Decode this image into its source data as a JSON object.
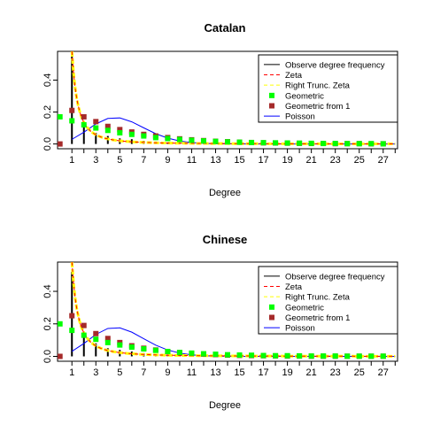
{
  "chart_data": [
    {
      "type": "line",
      "title": "Catalan",
      "xlabel": "Degree",
      "ylabel": "",
      "xlim": [
        -0.2,
        28.2
      ],
      "ylim": [
        -0.03,
        0.58
      ],
      "x_ticks": [
        1,
        2,
        3,
        4,
        5,
        6,
        7,
        8,
        9,
        10,
        11,
        12,
        13,
        14,
        15,
        16,
        17,
        18,
        19,
        20,
        21,
        22,
        23,
        24,
        25,
        26,
        27,
        28
      ],
      "x_tick_labels": [
        "1",
        "3",
        "5",
        "7",
        "9",
        "11",
        "13",
        "15",
        "17",
        "19",
        "21",
        "23",
        "25",
        "27"
      ],
      "y_ticks": [
        0.0,
        0.2,
        0.4
      ],
      "y_tick_labels": [
        "0.0",
        "0.2",
        "0.4"
      ],
      "legend_position": "top-right",
      "legend": [
        {
          "label": "Observe degree frequency",
          "kind": "line",
          "color": "#000000",
          "dash": ""
        },
        {
          "label": "Zeta",
          "kind": "line",
          "color": "#ff0000",
          "dash": "4,3"
        },
        {
          "label": "Right Trunc. Zeta",
          "kind": "line",
          "color": "#ffff00",
          "dash": "4,3"
        },
        {
          "label": "Geometric",
          "kind": "square",
          "color": "#00ff00"
        },
        {
          "label": "Geometric from 1",
          "kind": "square",
          "color": "#a52a2a"
        },
        {
          "label": "Poisson",
          "kind": "line",
          "color": "#0000ff",
          "dash": ""
        }
      ],
      "observed": [
        [
          1,
          0.55
        ],
        [
          2,
          0.14
        ],
        [
          3,
          0.07
        ],
        [
          4,
          0.05
        ],
        [
          5,
          0.035
        ],
        [
          6,
          0.03
        ],
        [
          7,
          0.02
        ],
        [
          8,
          0.015
        ],
        [
          9,
          0.01
        ],
        [
          10,
          0.01
        ],
        [
          11,
          0.008
        ],
        [
          12,
          0.006
        ],
        [
          13,
          0.005
        ],
        [
          14,
          0.004
        ],
        [
          15,
          0.003
        ],
        [
          16,
          0.003
        ],
        [
          17,
          0.002
        ],
        [
          18,
          0.002
        ],
        [
          19,
          0.002
        ],
        [
          20,
          0.001
        ],
        [
          21,
          0.001
        ],
        [
          22,
          0.001
        ],
        [
          23,
          0.001
        ],
        [
          24,
          0.001
        ],
        [
          25,
          0.001
        ],
        [
          26,
          0.001
        ],
        [
          27,
          0.001
        ]
      ],
      "zeta_exponent": 2.1,
      "zeta_scale": 0.58,
      "geometric": [
        [
          0,
          0.17
        ],
        [
          1,
          0.145
        ],
        [
          2,
          0.12
        ],
        [
          3,
          0.1
        ],
        [
          4,
          0.085
        ],
        [
          5,
          0.07
        ],
        [
          6,
          0.06
        ],
        [
          7,
          0.05
        ],
        [
          8,
          0.04
        ],
        [
          9,
          0.034
        ],
        [
          10,
          0.028
        ],
        [
          11,
          0.023
        ],
        [
          12,
          0.019
        ],
        [
          13,
          0.016
        ],
        [
          14,
          0.013
        ],
        [
          15,
          0.011
        ],
        [
          16,
          0.009
        ],
        [
          17,
          0.008
        ],
        [
          18,
          0.007
        ],
        [
          19,
          0.006
        ],
        [
          20,
          0.005
        ],
        [
          21,
          0.004
        ],
        [
          22,
          0.003
        ],
        [
          23,
          0.003
        ],
        [
          24,
          0.002
        ],
        [
          25,
          0.002
        ],
        [
          26,
          0.002
        ],
        [
          27,
          0.001
        ]
      ],
      "geometric_from1": [
        [
          0,
          0.0
        ],
        [
          1,
          0.21
        ],
        [
          2,
          0.17
        ],
        [
          3,
          0.14
        ],
        [
          4,
          0.11
        ],
        [
          5,
          0.09
        ],
        [
          6,
          0.075
        ],
        [
          7,
          0.06
        ],
        [
          8,
          0.05
        ],
        [
          9,
          0.04
        ],
        [
          10,
          0.032
        ],
        [
          11,
          0.026
        ],
        [
          12,
          0.021
        ],
        [
          13,
          0.017
        ],
        [
          14,
          0.014
        ],
        [
          15,
          0.011
        ],
        [
          16,
          0.009
        ],
        [
          17,
          0.007
        ],
        [
          18,
          0.006
        ],
        [
          19,
          0.005
        ],
        [
          20,
          0.004
        ],
        [
          21,
          0.003
        ],
        [
          22,
          0.003
        ],
        [
          23,
          0.002
        ],
        [
          24,
          0.002
        ],
        [
          25,
          0.002
        ],
        [
          26,
          0.001
        ],
        [
          27,
          0.001
        ]
      ],
      "poisson_lambda": 5.1,
      "poisson_scale": 0.93
    },
    {
      "type": "line",
      "title": "Chinese",
      "xlabel": "Degree",
      "ylabel": "",
      "xlim": [
        -0.2,
        28.2
      ],
      "ylim": [
        -0.03,
        0.58
      ],
      "x_ticks": [
        1,
        2,
        3,
        4,
        5,
        6,
        7,
        8,
        9,
        10,
        11,
        12,
        13,
        14,
        15,
        16,
        17,
        18,
        19,
        20,
        21,
        22,
        23,
        24,
        25,
        26,
        27,
        28
      ],
      "x_tick_labels": [
        "1",
        "3",
        "5",
        "7",
        "9",
        "11",
        "13",
        "15",
        "17",
        "19",
        "21",
        "23",
        "25",
        "27"
      ],
      "y_ticks": [
        0.0,
        0.2,
        0.4
      ],
      "y_tick_labels": [
        "0.0",
        "0.2",
        "0.4"
      ],
      "legend_position": "top-right",
      "legend": [
        {
          "label": "Observe degree frequency",
          "kind": "line",
          "color": "#000000",
          "dash": ""
        },
        {
          "label": "Zeta",
          "kind": "line",
          "color": "#ff0000",
          "dash": "4,3"
        },
        {
          "label": "Right Trunc. Zeta",
          "kind": "line",
          "color": "#ffff00",
          "dash": "4,3"
        },
        {
          "label": "Geometric",
          "kind": "square",
          "color": "#00ff00"
        },
        {
          "label": "Geometric from 1",
          "kind": "square",
          "color": "#a52a2a"
        },
        {
          "label": "Poisson",
          "kind": "line",
          "color": "#0000ff",
          "dash": ""
        }
      ],
      "observed": [
        [
          1,
          0.52
        ],
        [
          2,
          0.15
        ],
        [
          3,
          0.08
        ],
        [
          4,
          0.05
        ],
        [
          5,
          0.04
        ],
        [
          6,
          0.03
        ],
        [
          7,
          0.02
        ],
        [
          8,
          0.015
        ],
        [
          9,
          0.012
        ],
        [
          10,
          0.01
        ],
        [
          11,
          0.008
        ],
        [
          12,
          0.006
        ],
        [
          13,
          0.005
        ],
        [
          14,
          0.004
        ],
        [
          15,
          0.003
        ],
        [
          16,
          0.003
        ],
        [
          17,
          0.002
        ],
        [
          18,
          0.002
        ],
        [
          19,
          0.002
        ],
        [
          20,
          0.001
        ],
        [
          21,
          0.001
        ],
        [
          22,
          0.001
        ],
        [
          23,
          0.001
        ],
        [
          24,
          0.001
        ],
        [
          25,
          0.001
        ],
        [
          26,
          0.001
        ],
        [
          27,
          0.001
        ]
      ],
      "zeta_exponent": 2.0,
      "zeta_scale": 0.58,
      "geometric": [
        [
          0,
          0.2
        ],
        [
          1,
          0.16
        ],
        [
          2,
          0.13
        ],
        [
          3,
          0.105
        ],
        [
          4,
          0.085
        ],
        [
          5,
          0.07
        ],
        [
          6,
          0.057
        ],
        [
          7,
          0.046
        ],
        [
          8,
          0.037
        ],
        [
          9,
          0.03
        ],
        [
          10,
          0.024
        ],
        [
          11,
          0.02
        ],
        [
          12,
          0.016
        ],
        [
          13,
          0.013
        ],
        [
          14,
          0.01
        ],
        [
          15,
          0.008
        ],
        [
          16,
          0.007
        ],
        [
          17,
          0.005
        ],
        [
          18,
          0.004
        ],
        [
          19,
          0.004
        ],
        [
          20,
          0.003
        ],
        [
          21,
          0.002
        ],
        [
          22,
          0.002
        ],
        [
          23,
          0.002
        ],
        [
          24,
          0.001
        ],
        [
          25,
          0.001
        ],
        [
          26,
          0.001
        ],
        [
          27,
          0.001
        ]
      ],
      "geometric_from1": [
        [
          0,
          0.0
        ],
        [
          1,
          0.25
        ],
        [
          2,
          0.19
        ],
        [
          3,
          0.14
        ],
        [
          4,
          0.11
        ],
        [
          5,
          0.085
        ],
        [
          6,
          0.065
        ],
        [
          7,
          0.05
        ],
        [
          8,
          0.039
        ],
        [
          9,
          0.03
        ],
        [
          10,
          0.023
        ],
        [
          11,
          0.018
        ],
        [
          12,
          0.014
        ],
        [
          13,
          0.011
        ],
        [
          14,
          0.008
        ],
        [
          15,
          0.006
        ],
        [
          16,
          0.005
        ],
        [
          17,
          0.004
        ],
        [
          18,
          0.003
        ],
        [
          19,
          0.002
        ],
        [
          20,
          0.002
        ],
        [
          21,
          0.001
        ],
        [
          22,
          0.001
        ],
        [
          23,
          0.001
        ],
        [
          24,
          0.001
        ],
        [
          25,
          0.001
        ],
        [
          26,
          0.001
        ],
        [
          27,
          0.001
        ]
      ],
      "poisson_lambda": 5.1,
      "poisson_scale": 1.0
    }
  ]
}
